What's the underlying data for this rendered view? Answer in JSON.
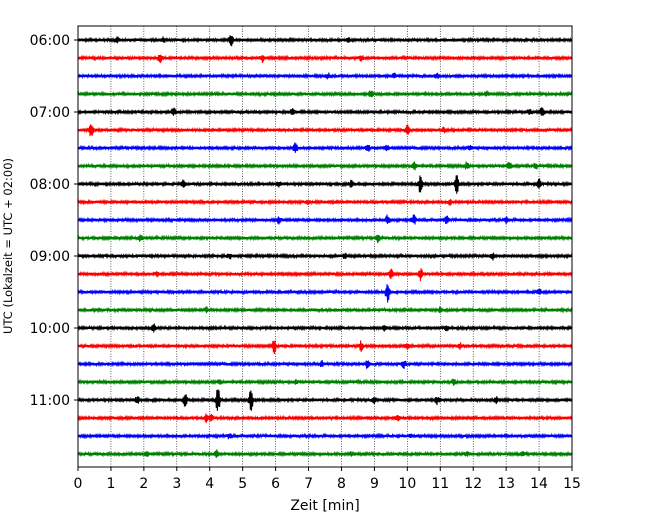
{
  "chart_data": {
    "type": "line",
    "xlabel": "Zeit  [min]",
    "ylabel": "UTC (Lokalzeit = UTC + 02:00)",
    "xlim": [
      0,
      15
    ],
    "x_ticks": [
      "0",
      "1",
      "2",
      "3",
      "4",
      "5",
      "6",
      "7",
      "8",
      "9",
      "10",
      "11",
      "12",
      "13",
      "14",
      "15"
    ],
    "y_tick_labels": [
      "06:00",
      "07:00",
      "08:00",
      "09:00",
      "10:00",
      "11:00"
    ],
    "grid": "vertical-dotted",
    "row_interval_minutes": 15,
    "row_colors": [
      "#000000",
      "#ff0000",
      "#0000ff",
      "#008000"
    ],
    "rows": [
      {
        "time": "06:00",
        "color": "#000000",
        "events": [
          [
            1.2,
            0.6
          ],
          [
            2.6,
            0.6
          ],
          [
            4.65,
            1.4
          ],
          [
            8.2,
            0.6
          ]
        ]
      },
      {
        "time": "06:15",
        "color": "#ff0000",
        "events": [
          [
            2.5,
            1.3
          ],
          [
            5.6,
            1.0
          ],
          [
            8.6,
            0.6
          ]
        ]
      },
      {
        "time": "06:30",
        "color": "#0000ff",
        "events": [
          [
            7.6,
            0.6
          ],
          [
            9.6,
            0.5
          ],
          [
            10.9,
            0.5
          ]
        ]
      },
      {
        "time": "06:45",
        "color": "#008000",
        "events": [
          [
            8.9,
            0.9
          ],
          [
            12.4,
            0.5
          ]
        ]
      },
      {
        "time": "07:00",
        "color": "#000000",
        "events": [
          [
            2.9,
            1.0
          ],
          [
            6.5,
            0.8
          ],
          [
            13.7,
            0.6
          ],
          [
            14.1,
            1.2
          ]
        ]
      },
      {
        "time": "07:15",
        "color": "#ff0000",
        "events": [
          [
            0.4,
            1.6
          ],
          [
            10.0,
            1.1
          ],
          [
            11.1,
            0.6
          ]
        ]
      },
      {
        "time": "07:30",
        "color": "#0000ff",
        "events": [
          [
            6.6,
            1.2
          ],
          [
            8.8,
            1.0
          ],
          [
            9.4,
            0.8
          ],
          [
            11.9,
            0.5
          ]
        ]
      },
      {
        "time": "07:45",
        "color": "#008000",
        "events": [
          [
            10.2,
            0.9
          ],
          [
            11.8,
            0.8
          ],
          [
            13.1,
            1.0
          ],
          [
            13.9,
            0.8
          ]
        ]
      },
      {
        "time": "08:00",
        "color": "#000000",
        "events": [
          [
            3.2,
            0.9
          ],
          [
            6.1,
            0.6
          ],
          [
            8.3,
            0.7
          ],
          [
            10.4,
            2.2
          ],
          [
            11.5,
            2.0
          ],
          [
            14.0,
            1.1
          ]
        ]
      },
      {
        "time": "08:15",
        "color": "#ff0000",
        "events": [
          [
            7.0,
            0.5
          ],
          [
            11.3,
            0.6
          ]
        ]
      },
      {
        "time": "08:30",
        "color": "#0000ff",
        "events": [
          [
            6.1,
            0.8
          ],
          [
            9.4,
            1.1
          ],
          [
            10.2,
            1.2
          ],
          [
            11.2,
            1.0
          ],
          [
            13.0,
            0.7
          ]
        ]
      },
      {
        "time": "08:45",
        "color": "#008000",
        "events": [
          [
            1.9,
            0.9
          ],
          [
            9.1,
            0.9
          ]
        ]
      },
      {
        "time": "09:00",
        "color": "#000000",
        "events": [
          [
            4.6,
            0.6
          ],
          [
            8.1,
            0.5
          ],
          [
            12.6,
            0.8
          ]
        ]
      },
      {
        "time": "09:15",
        "color": "#ff0000",
        "events": [
          [
            2.4,
            0.5
          ],
          [
            9.5,
            1.2
          ],
          [
            10.4,
            1.3
          ]
        ]
      },
      {
        "time": "09:30",
        "color": "#0000ff",
        "events": [
          [
            9.4,
            2.2
          ],
          [
            14.0,
            0.7
          ]
        ]
      },
      {
        "time": "09:45",
        "color": "#008000",
        "events": [
          [
            3.9,
            0.6
          ],
          [
            11.0,
            0.6
          ]
        ]
      },
      {
        "time": "10:00",
        "color": "#000000",
        "events": [
          [
            2.3,
            1.0
          ],
          [
            9.3,
            0.6
          ],
          [
            11.2,
            0.5
          ]
        ]
      },
      {
        "time": "10:15",
        "color": "#ff0000",
        "events": [
          [
            5.95,
            1.8
          ],
          [
            8.6,
            1.1
          ],
          [
            10.0,
            0.6
          ],
          [
            11.6,
            0.6
          ]
        ]
      },
      {
        "time": "10:30",
        "color": "#0000ff",
        "events": [
          [
            7.4,
            0.6
          ],
          [
            8.8,
            1.2
          ],
          [
            9.9,
            0.9
          ]
        ]
      },
      {
        "time": "10:45",
        "color": "#008000",
        "events": [
          [
            4.3,
            0.6
          ],
          [
            6.6,
            0.5
          ],
          [
            11.4,
            0.6
          ]
        ]
      },
      {
        "time": "11:00",
        "color": "#000000",
        "events": [
          [
            1.8,
            0.8
          ],
          [
            3.25,
            1.6
          ],
          [
            4.25,
            3.2
          ],
          [
            5.25,
            2.6
          ],
          [
            9.0,
            0.9
          ],
          [
            10.9,
            0.9
          ],
          [
            12.7,
            0.8
          ]
        ]
      },
      {
        "time": "11:15",
        "color": "#ff0000",
        "events": [
          [
            3.9,
            0.9
          ],
          [
            4.05,
            1.0
          ],
          [
            9.7,
            0.6
          ]
        ]
      },
      {
        "time": "11:30",
        "color": "#0000ff",
        "events": [
          [
            4.6,
            0.6
          ],
          [
            10.1,
            0.5
          ]
        ]
      },
      {
        "time": "11:45",
        "color": "#008000",
        "events": [
          [
            2.1,
            0.5
          ],
          [
            4.2,
            0.9
          ],
          [
            8.3,
            0.5
          ],
          [
            11.8,
            0.5
          ],
          [
            13.5,
            0.5
          ]
        ]
      }
    ]
  }
}
